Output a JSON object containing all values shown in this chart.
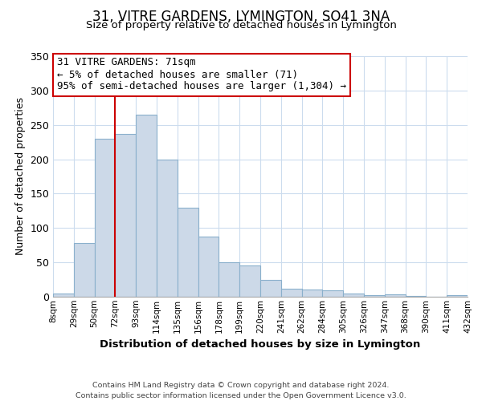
{
  "title": "31, VITRE GARDENS, LYMINGTON, SO41 3NA",
  "subtitle": "Size of property relative to detached houses in Lymington",
  "xlabel": "Distribution of detached houses by size in Lymington",
  "ylabel": "Number of detached properties",
  "bar_labels": [
    "8sqm",
    "29sqm",
    "50sqm",
    "72sqm",
    "93sqm",
    "114sqm",
    "135sqm",
    "156sqm",
    "178sqm",
    "199sqm",
    "220sqm",
    "241sqm",
    "262sqm",
    "284sqm",
    "305sqm",
    "326sqm",
    "347sqm",
    "368sqm",
    "390sqm",
    "411sqm",
    "432sqm"
  ],
  "bar_values": [
    5,
    78,
    230,
    237,
    265,
    200,
    130,
    87,
    50,
    46,
    25,
    12,
    10,
    9,
    5,
    2,
    4,
    1,
    0,
    2
  ],
  "bar_color": "#ccd9e8",
  "bar_edge_color": "#8ab0cc",
  "marker_color": "#cc0000",
  "ylim": [
    0,
    350
  ],
  "yticks": [
    0,
    50,
    100,
    150,
    200,
    250,
    300,
    350
  ],
  "annotation_title": "31 VITRE GARDENS: 71sqm",
  "annotation_line1": "← 5% of detached houses are smaller (71)",
  "annotation_line2": "95% of semi-detached houses are larger (1,304) →",
  "annotation_box_color": "#ffffff",
  "annotation_box_edge": "#cc0000",
  "footer1": "Contains HM Land Registry data © Crown copyright and database right 2024.",
  "footer2": "Contains public sector information licensed under the Open Government Licence v3.0.",
  "background_color": "#ffffff",
  "grid_color": "#ccdcee"
}
